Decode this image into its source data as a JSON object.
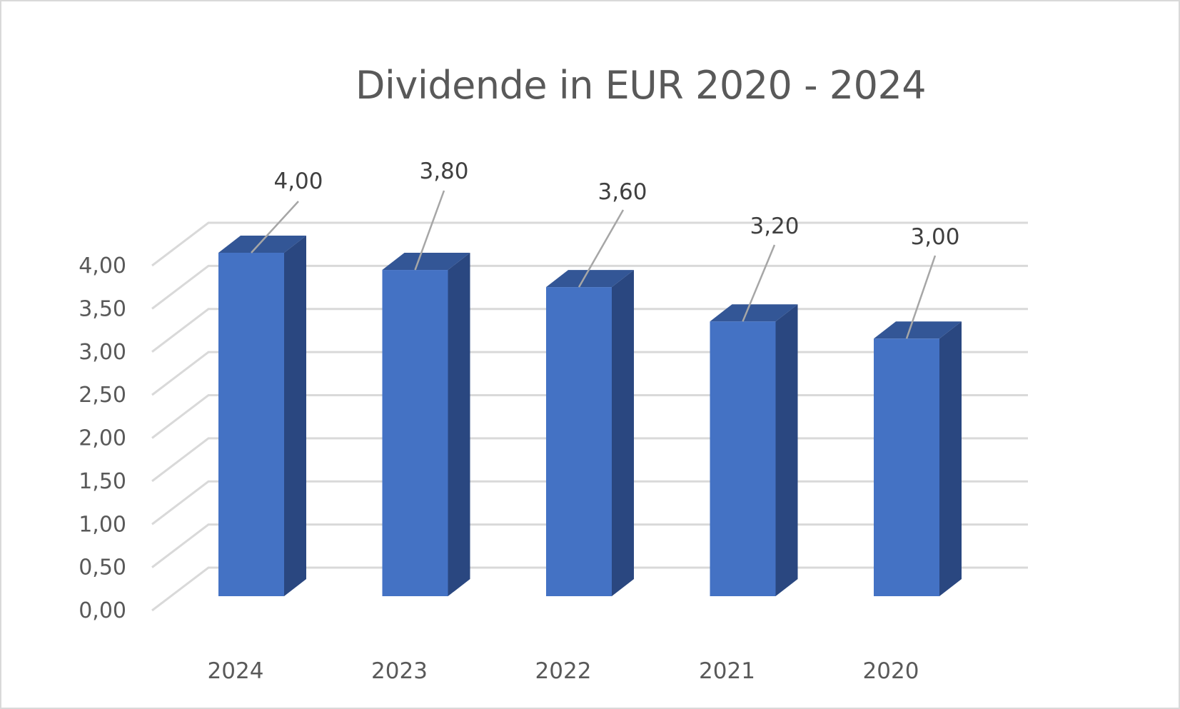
{
  "chart": {
    "title": "Dividende in EUR 2020 - 2024",
    "y_ticks": [
      "0,00",
      "0,50",
      "1,00",
      "1,50",
      "2,00",
      "2,50",
      "3,00",
      "3,50",
      "4,00"
    ],
    "categories": [
      "2024",
      "2023",
      "2022",
      "2021",
      "2020"
    ],
    "data_labels": [
      "4,00",
      "3,80",
      "3,60",
      "3,20",
      "3,00"
    ]
  },
  "colors": {
    "bar_front": "#4472c4",
    "bar_top": "#335696",
    "bar_side": "#2a4780",
    "gridline": "#d9d9d9",
    "leader_line": "#a6a6a6",
    "text": "#595959",
    "label_text": "#404040"
  },
  "chart_data": {
    "type": "bar",
    "style": "3d-column",
    "title": "Dividende in EUR 2020 - 2024",
    "categories": [
      "2024",
      "2023",
      "2022",
      "2021",
      "2020"
    ],
    "values": [
      4.0,
      3.8,
      3.6,
      3.2,
      3.0
    ],
    "data_labels": [
      "4,00",
      "3,80",
      "3,60",
      "3,20",
      "3,00"
    ],
    "xlabel": "",
    "ylabel": "",
    "ylim": [
      0,
      4.0
    ],
    "y_ticks": [
      0.0,
      0.5,
      1.0,
      1.5,
      2.0,
      2.5,
      3.0,
      3.5,
      4.0
    ],
    "grid": true,
    "legend": null
  }
}
